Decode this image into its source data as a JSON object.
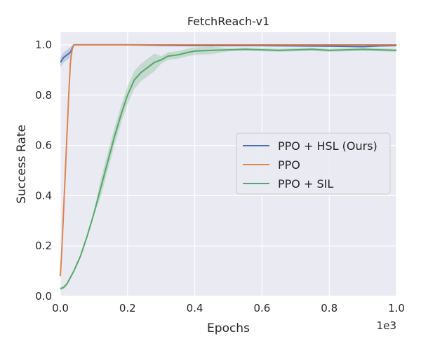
{
  "chart_data": {
    "type": "line",
    "title": "FetchReach-v1",
    "xlabel": "Epochs",
    "ylabel": "Success Rate",
    "x_offset_label": "1e3",
    "xlim": [
      0,
      1.0
    ],
    "ylim": [
      0,
      1.05
    ],
    "x_ticks": [
      "0.0",
      "0.2",
      "0.4",
      "0.6",
      "0.8",
      "1.0"
    ],
    "y_ticks": [
      "0.0",
      "0.2",
      "0.4",
      "0.6",
      "0.8",
      "1.0"
    ],
    "grid": true,
    "legend_position": "center-right",
    "series": [
      {
        "name": "PPO + HSL (Ours)",
        "color": "#4c72b0",
        "x": [
          0,
          0.01,
          0.02,
          0.03,
          0.04,
          0.06,
          0.1,
          0.2,
          0.3,
          0.4,
          0.5,
          0.6,
          0.7,
          0.8,
          0.9,
          0.95,
          1.0
        ],
        "y": [
          0.93,
          0.95,
          0.96,
          0.97,
          1.0,
          1.0,
          1.0,
          1.0,
          0.998,
          0.997,
          0.997,
          0.997,
          0.996,
          0.995,
          0.993,
          0.996,
          0.997
        ]
      },
      {
        "name": "PPO",
        "color": "#dd8452",
        "x": [
          0,
          0.005,
          0.01,
          0.015,
          0.02,
          0.025,
          0.03,
          0.035,
          0.04,
          0.045,
          0.05,
          0.1,
          0.3,
          0.5,
          0.7,
          0.9,
          1.0
        ],
        "y": [
          0.08,
          0.2,
          0.35,
          0.5,
          0.65,
          0.8,
          0.93,
          0.98,
          1.0,
          1.0,
          1.0,
          1.0,
          1.0,
          1.0,
          1.0,
          1.0,
          1.0
        ]
      },
      {
        "name": "PPO + SIL",
        "color": "#55a868",
        "x": [
          0,
          0.01,
          0.02,
          0.04,
          0.06,
          0.08,
          0.1,
          0.12,
          0.14,
          0.16,
          0.18,
          0.2,
          0.22,
          0.24,
          0.26,
          0.28,
          0.3,
          0.32,
          0.35,
          0.38,
          0.4,
          0.45,
          0.5,
          0.55,
          0.6,
          0.65,
          0.7,
          0.75,
          0.8,
          0.85,
          0.9,
          0.95,
          1.0
        ],
        "y": [
          0.03,
          0.035,
          0.05,
          0.1,
          0.16,
          0.24,
          0.33,
          0.43,
          0.53,
          0.63,
          0.72,
          0.8,
          0.86,
          0.89,
          0.91,
          0.93,
          0.94,
          0.955,
          0.96,
          0.97,
          0.975,
          0.978,
          0.98,
          0.982,
          0.98,
          0.978,
          0.98,
          0.982,
          0.978,
          0.98,
          0.982,
          0.98,
          0.978
        ]
      }
    ]
  }
}
